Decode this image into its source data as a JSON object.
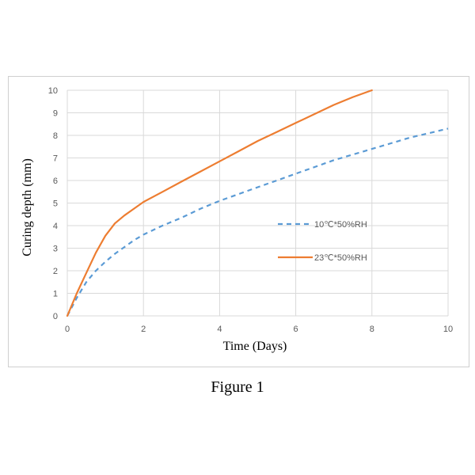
{
  "caption": "Figure 1",
  "colors": {
    "series1": "#5b9bd5",
    "series2": "#ed7d31",
    "grid": "#d9d9d9",
    "tick_text": "#595959"
  },
  "chart_data": {
    "type": "line",
    "title": "",
    "xlabel": "Time (Days)",
    "ylabel": "Curing depth (mm)",
    "xlim": [
      0,
      10
    ],
    "ylim": [
      0,
      10
    ],
    "xticks": [
      0,
      2,
      4,
      6,
      8,
      10
    ],
    "yticks": [
      0,
      1,
      2,
      3,
      4,
      5,
      6,
      7,
      8,
      9,
      10
    ],
    "grid": true,
    "legend_position": "right",
    "series": [
      {
        "name": "10℃*50%RH",
        "style": "dashed",
        "x": [
          0,
          0.25,
          0.5,
          0.75,
          1,
          1.25,
          1.5,
          1.75,
          2,
          2.5,
          3,
          3.5,
          4,
          4.5,
          5,
          5.5,
          6,
          6.5,
          7,
          7.5,
          8,
          8.5,
          9,
          9.5,
          10
        ],
        "y": [
          0,
          0.8,
          1.5,
          2.0,
          2.4,
          2.75,
          3.05,
          3.35,
          3.6,
          4.0,
          4.35,
          4.75,
          5.1,
          5.4,
          5.7,
          6.0,
          6.3,
          6.6,
          6.9,
          7.15,
          7.4,
          7.65,
          7.9,
          8.1,
          8.3
        ]
      },
      {
        "name": "23℃*50%RH",
        "style": "solid",
        "x": [
          0,
          0.25,
          0.5,
          0.75,
          1,
          1.25,
          1.5,
          1.75,
          2,
          2.5,
          3,
          3.5,
          4,
          4.5,
          5,
          5.5,
          6,
          6.5,
          7,
          7.5,
          8
        ],
        "y": [
          0,
          1.0,
          1.9,
          2.8,
          3.55,
          4.1,
          4.45,
          4.75,
          5.05,
          5.5,
          5.95,
          6.4,
          6.85,
          7.3,
          7.75,
          8.15,
          8.55,
          8.95,
          9.35,
          9.7,
          10.0
        ]
      }
    ]
  }
}
